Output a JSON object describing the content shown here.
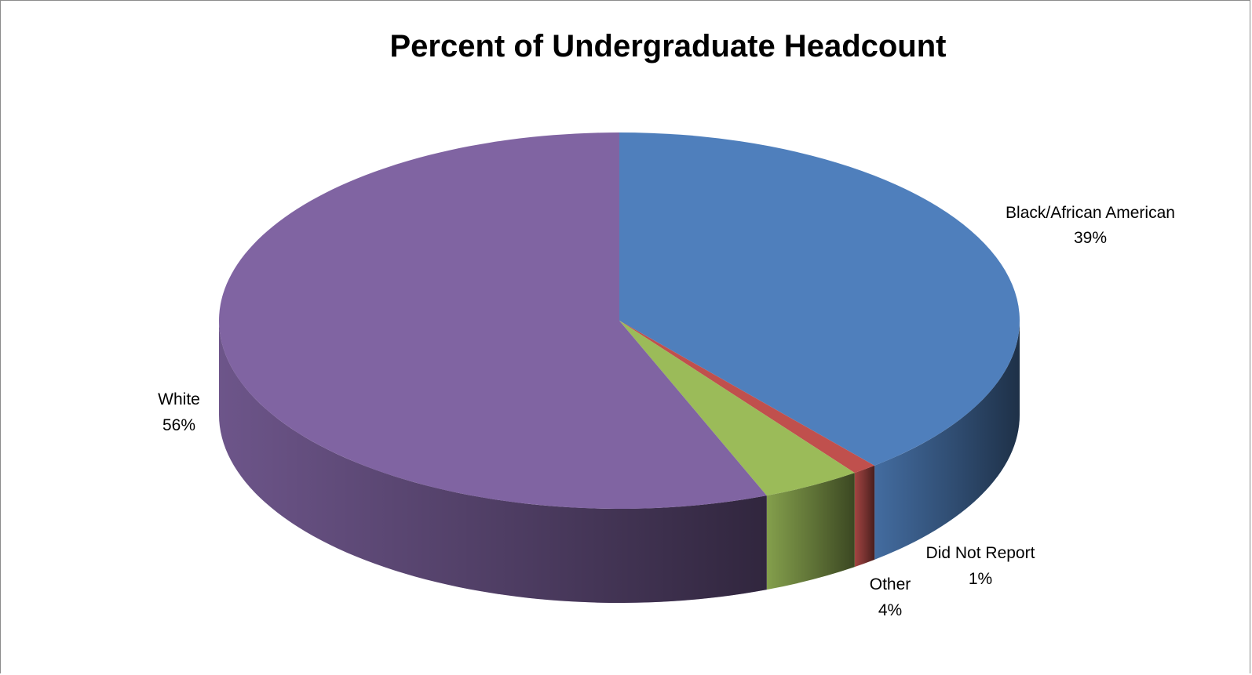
{
  "chart_data": {
    "type": "pie",
    "style": "3d",
    "title": "Percent of Undergraduate Headcount",
    "slices": [
      {
        "name": "Black/African American",
        "value": 39,
        "label": "39%",
        "color": "#4f7fbc"
      },
      {
        "name": "Did Not Report",
        "value": 1,
        "label": "1%",
        "color": "#c0504d"
      },
      {
        "name": "Other",
        "value": 4,
        "label": "4%",
        "color": "#9bbb59"
      },
      {
        "name": "White",
        "value": 56,
        "label": "56%",
        "color": "#8064a2"
      }
    ],
    "legend": "none",
    "data_labels": "outside"
  }
}
